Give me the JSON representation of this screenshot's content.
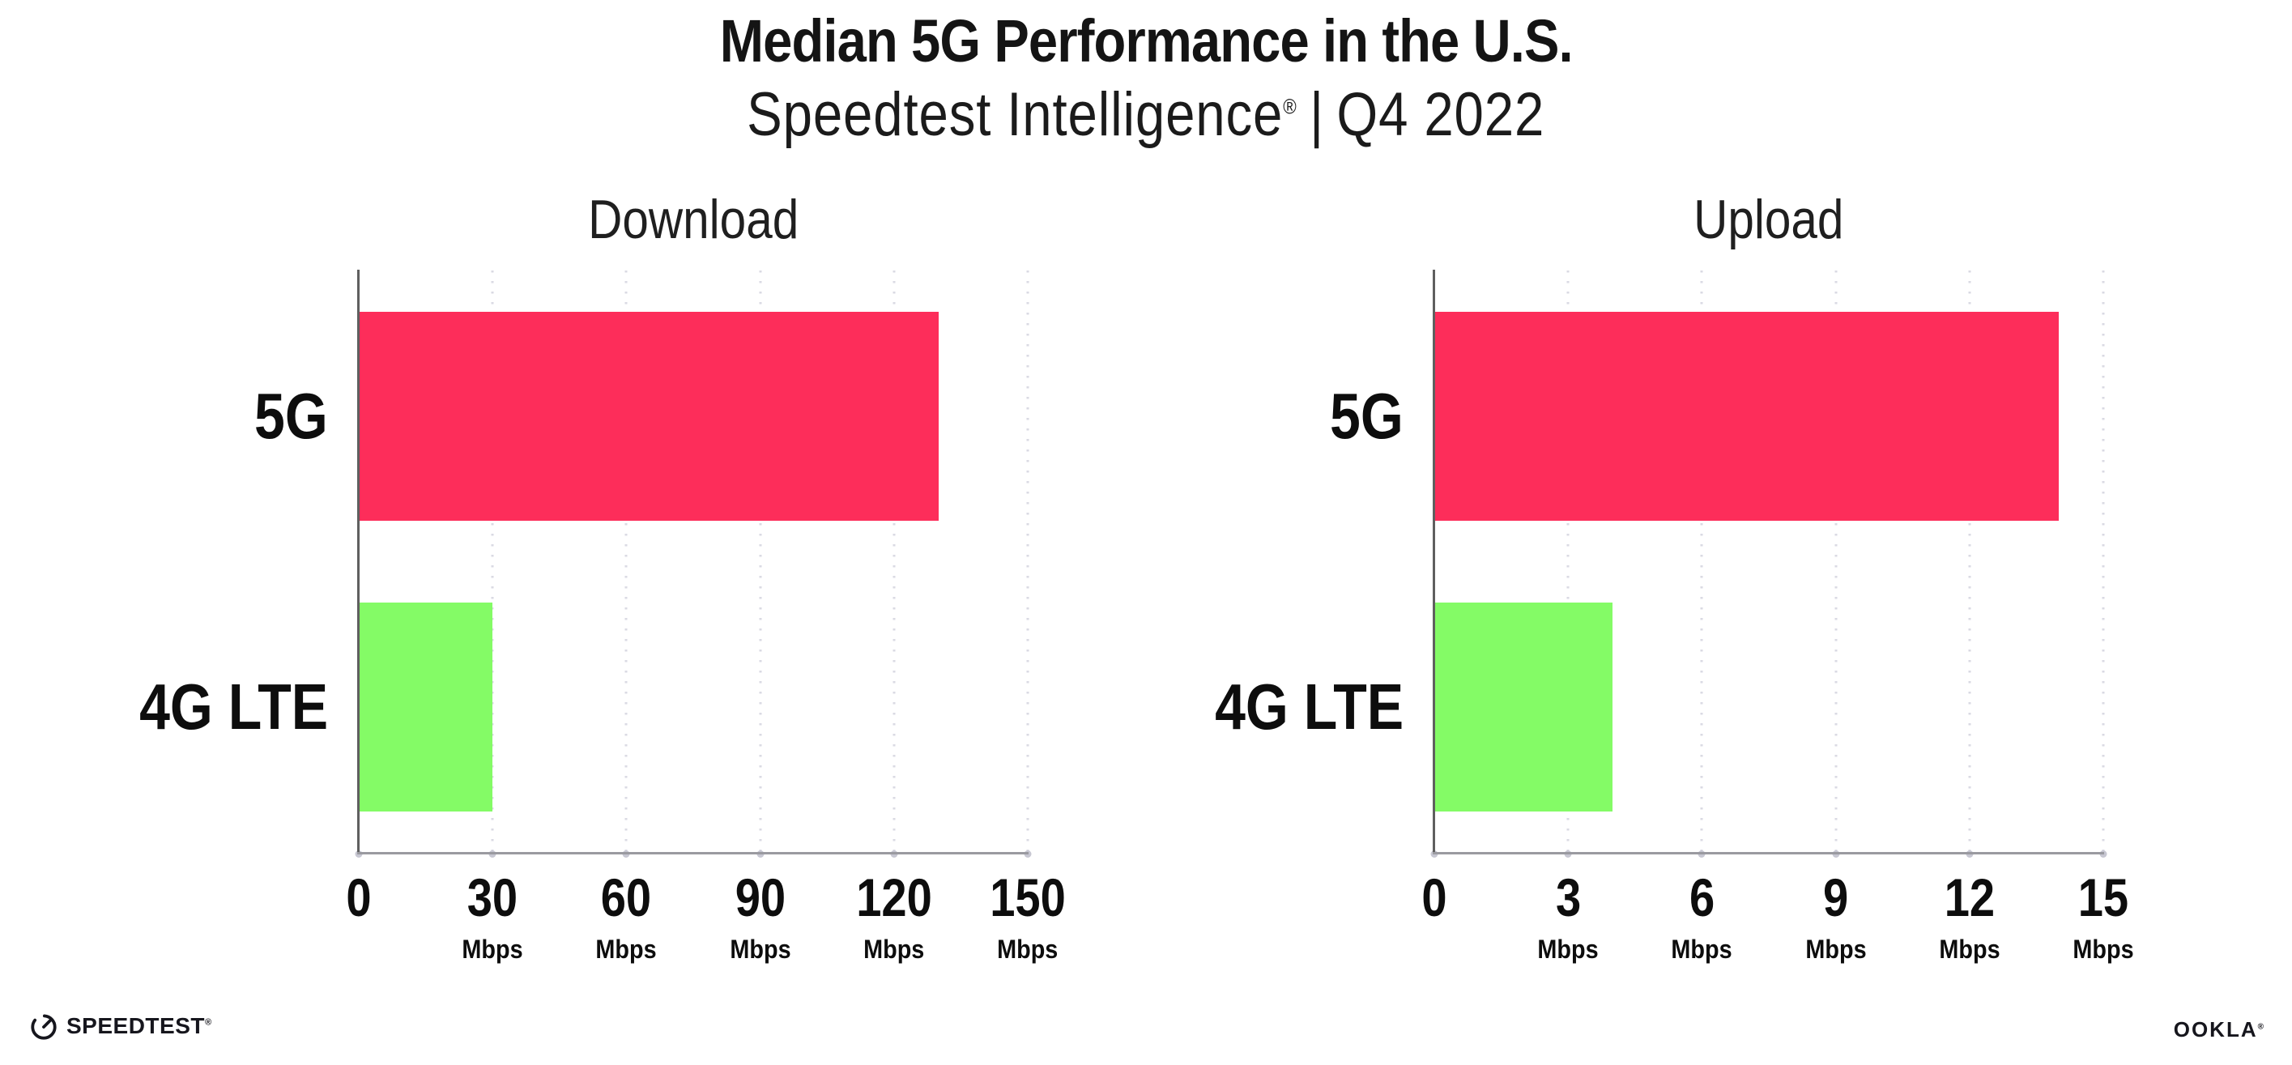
{
  "header": {
    "title": "Median 5G Performance in the U.S.",
    "subtitle_brand": "Speedtest Intelligence",
    "subtitle_reg": "®",
    "subtitle_sep": "|",
    "subtitle_period": "Q4 2022"
  },
  "chart_data": [
    {
      "type": "bar",
      "orientation": "horizontal",
      "title": "Download",
      "categories": [
        "5G",
        "4G LTE"
      ],
      "values": [
        130,
        30
      ],
      "unit": "Mbps",
      "xlim": [
        0,
        150
      ],
      "xticks": [
        0,
        30,
        60,
        90,
        120,
        150
      ],
      "grid": "vertical-dotted",
      "legend": "none",
      "bar_colors": [
        "#FD2D5A",
        "#84FB66"
      ]
    },
    {
      "type": "bar",
      "orientation": "horizontal",
      "title": "Upload",
      "categories": [
        "5G",
        "4G LTE"
      ],
      "values": [
        14,
        4
      ],
      "unit": "Mbps",
      "xlim": [
        0,
        15
      ],
      "xticks": [
        0,
        3,
        6,
        9,
        12,
        15
      ],
      "grid": "vertical-dotted",
      "legend": "none",
      "bar_colors": [
        "#FD2D5A",
        "#84FB66"
      ]
    }
  ],
  "footer": {
    "speedtest_label": "SPEEDTEST",
    "speedtest_mark": "®",
    "ookla_label": "OOKLA",
    "ookla_mark": "®"
  },
  "colors": {
    "bar_5g": "#FD2D5A",
    "bar_4g_lte": "#84FB66",
    "axis_y": "#5F5F5F",
    "axis_x": "#9A9AA0",
    "grid_dot": "#DADAE3",
    "text": "#141414"
  }
}
